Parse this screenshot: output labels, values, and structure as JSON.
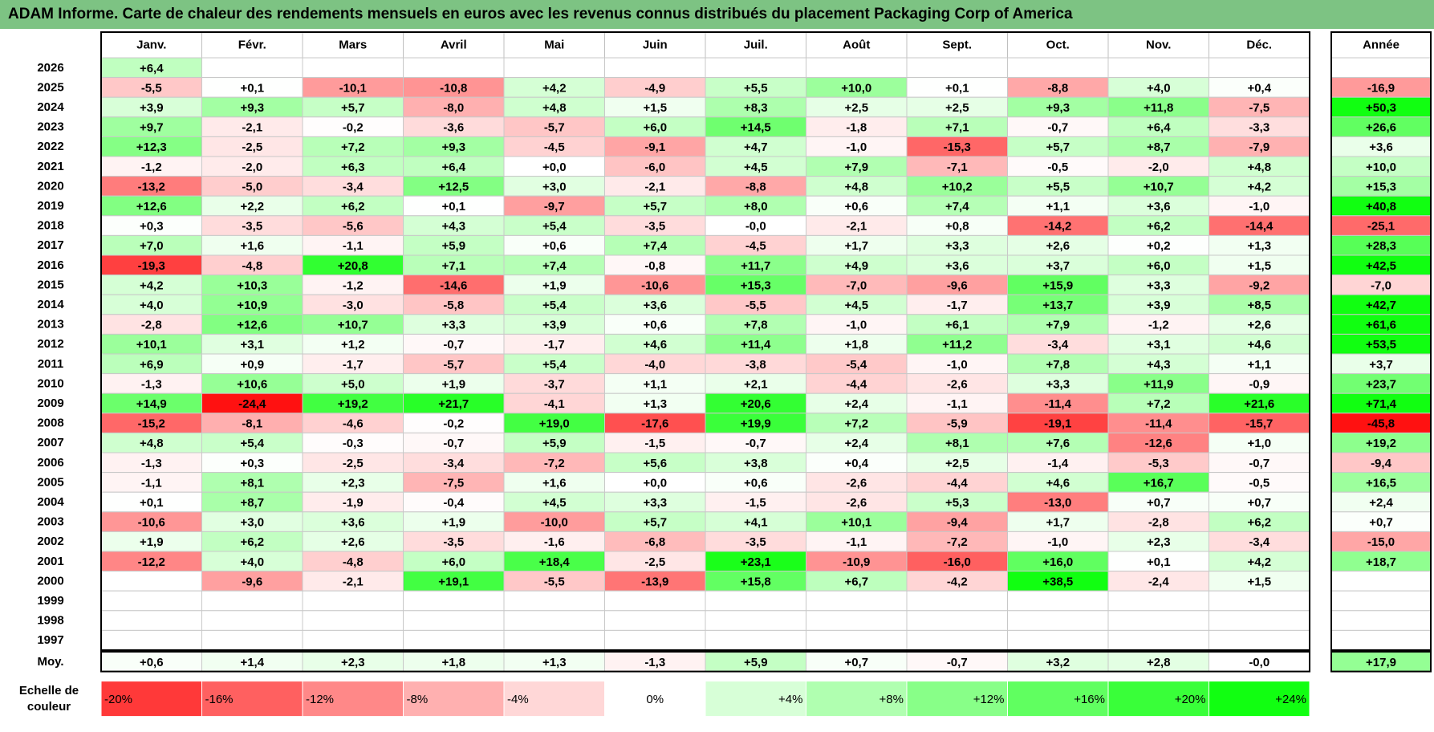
{
  "title": "ADAM Informe. Carte de chaleur des rendements mensuels en euros avec les revenus connus distribués du placement Packaging Corp of America",
  "chart_data": {
    "type": "heatmap",
    "months": [
      "Janv.",
      "Févr.",
      "Mars",
      "Avril",
      "Mai",
      "Juin",
      "Juil.",
      "Août",
      "Sept.",
      "Oct.",
      "Nov.",
      "Déc."
    ],
    "year_column_label": "Année",
    "rows": [
      {
        "year": "2026",
        "values": [
          "+6,4",
          null,
          null,
          null,
          null,
          null,
          null,
          null,
          null,
          null,
          null,
          null
        ],
        "annual": null
      },
      {
        "year": "2025",
        "values": [
          "-5,5",
          "+0,1",
          "-10,1",
          "-10,8",
          "+4,2",
          "-4,9",
          "+5,5",
          "+10,0",
          "+0,1",
          "-8,8",
          "+4,0",
          "+0,4"
        ],
        "annual": "-16,9"
      },
      {
        "year": "2024",
        "values": [
          "+3,9",
          "+9,3",
          "+5,7",
          "-8,0",
          "+4,8",
          "+1,5",
          "+8,3",
          "+2,5",
          "+2,5",
          "+9,3",
          "+11,8",
          "-7,5"
        ],
        "annual": "+50,3"
      },
      {
        "year": "2023",
        "values": [
          "+9,7",
          "-2,1",
          "-0,2",
          "-3,6",
          "-5,7",
          "+6,0",
          "+14,5",
          "-1,8",
          "+7,1",
          "-0,7",
          "+6,4",
          "-3,3"
        ],
        "annual": "+26,6"
      },
      {
        "year": "2022",
        "values": [
          "+12,3",
          "-2,5",
          "+7,2",
          "+9,3",
          "-4,5",
          "-9,1",
          "+4,7",
          "-1,0",
          "-15,3",
          "+5,7",
          "+8,7",
          "-7,9"
        ],
        "annual": "+3,6"
      },
      {
        "year": "2021",
        "values": [
          "-1,2",
          "-2,0",
          "+6,3",
          "+6,4",
          "+0,0",
          "-6,0",
          "+4,5",
          "+7,9",
          "-7,1",
          "-0,5",
          "-2,0",
          "+4,8"
        ],
        "annual": "+10,0"
      },
      {
        "year": "2020",
        "values": [
          "-13,2",
          "-5,0",
          "-3,4",
          "+12,5",
          "+3,0",
          "-2,1",
          "-8,8",
          "+4,8",
          "+10,2",
          "+5,5",
          "+10,7",
          "+4,2"
        ],
        "annual": "+15,3"
      },
      {
        "year": "2019",
        "values": [
          "+12,6",
          "+2,2",
          "+6,2",
          "+0,1",
          "-9,7",
          "+5,7",
          "+8,0",
          "+0,6",
          "+7,4",
          "+1,1",
          "+3,6",
          "-1,0"
        ],
        "annual": "+40,8"
      },
      {
        "year": "2018",
        "values": [
          "+0,3",
          "-3,5",
          "-5,6",
          "+4,3",
          "+5,4",
          "-3,5",
          "-0,0",
          "-2,1",
          "+0,8",
          "-14,2",
          "+6,2",
          "-14,4"
        ],
        "annual": "-25,1"
      },
      {
        "year": "2017",
        "values": [
          "+7,0",
          "+1,6",
          "-1,1",
          "+5,9",
          "+0,6",
          "+7,4",
          "-4,5",
          "+1,7",
          "+3,3",
          "+2,6",
          "+0,2",
          "+1,3"
        ],
        "annual": "+28,3"
      },
      {
        "year": "2016",
        "values": [
          "-19,3",
          "-4,8",
          "+20,8",
          "+7,1",
          "+7,4",
          "-0,8",
          "+11,7",
          "+4,9",
          "+3,6",
          "+3,7",
          "+6,0",
          "+1,5"
        ],
        "annual": "+42,5"
      },
      {
        "year": "2015",
        "values": [
          "+4,2",
          "+10,3",
          "-1,2",
          "-14,6",
          "+1,9",
          "-10,6",
          "+15,3",
          "-7,0",
          "-9,6",
          "+15,9",
          "+3,3",
          "-9,2"
        ],
        "annual": "-7,0"
      },
      {
        "year": "2014",
        "values": [
          "+4,0",
          "+10,9",
          "-3,0",
          "-5,8",
          "+5,4",
          "+3,6",
          "-5,5",
          "+4,5",
          "-1,7",
          "+13,7",
          "+3,9",
          "+8,5"
        ],
        "annual": "+42,7"
      },
      {
        "year": "2013",
        "values": [
          "-2,8",
          "+12,6",
          "+10,7",
          "+3,3",
          "+3,9",
          "+0,6",
          "+7,8",
          "-1,0",
          "+6,1",
          "+7,9",
          "-1,2",
          "+2,6"
        ],
        "annual": "+61,6"
      },
      {
        "year": "2012",
        "values": [
          "+10,1",
          "+3,1",
          "+1,2",
          "-0,7",
          "-1,7",
          "+4,6",
          "+11,4",
          "+1,8",
          "+11,2",
          "-3,4",
          "+3,1",
          "+4,6"
        ],
        "annual": "+53,5"
      },
      {
        "year": "2011",
        "values": [
          "+6,9",
          "+0,9",
          "-1,7",
          "-5,7",
          "+5,4",
          "-4,0",
          "-3,8",
          "-5,4",
          "-1,0",
          "+7,8",
          "+4,3",
          "+1,1"
        ],
        "annual": "+3,7"
      },
      {
        "year": "2010",
        "values": [
          "-1,3",
          "+10,6",
          "+5,0",
          "+1,9",
          "-3,7",
          "+1,1",
          "+2,1",
          "-4,4",
          "-2,6",
          "+3,3",
          "+11,9",
          "-0,9"
        ],
        "annual": "+23,7"
      },
      {
        "year": "2009",
        "values": [
          "+14,9",
          "-24,4",
          "+19,2",
          "+21,7",
          "-4,1",
          "+1,3",
          "+20,6",
          "+2,4",
          "-1,1",
          "-11,4",
          "+7,2",
          "+21,6"
        ],
        "annual": "+71,4"
      },
      {
        "year": "2008",
        "values": [
          "-15,2",
          "-8,1",
          "-4,6",
          "-0,2",
          "+19,0",
          "-17,6",
          "+19,9",
          "+7,2",
          "-5,9",
          "-19,1",
          "-11,4",
          "-15,7"
        ],
        "annual": "-45,8"
      },
      {
        "year": "2007",
        "values": [
          "+4,8",
          "+5,4",
          "-0,3",
          "-0,7",
          "+5,9",
          "-1,5",
          "-0,7",
          "+2,4",
          "+8,1",
          "+7,6",
          "-12,6",
          "+1,0"
        ],
        "annual": "+19,2"
      },
      {
        "year": "2006",
        "values": [
          "-1,3",
          "+0,3",
          "-2,5",
          "-3,4",
          "-7,2",
          "+5,6",
          "+3,8",
          "+0,4",
          "+2,5",
          "-1,4",
          "-5,3",
          "-0,7"
        ],
        "annual": "-9,4"
      },
      {
        "year": "2005",
        "values": [
          "-1,1",
          "+8,1",
          "+2,3",
          "-7,5",
          "+1,6",
          "+0,0",
          "+0,6",
          "-2,6",
          "-4,4",
          "+4,6",
          "+16,7",
          "-0,5"
        ],
        "annual": "+16,5"
      },
      {
        "year": "2004",
        "values": [
          "+0,1",
          "+8,7",
          "-1,9",
          "-0,4",
          "+4,5",
          "+3,3",
          "-1,5",
          "-2,6",
          "+5,3",
          "-13,0",
          "+0,7",
          "+0,7"
        ],
        "annual": "+2,4"
      },
      {
        "year": "2003",
        "values": [
          "-10,6",
          "+3,0",
          "+3,6",
          "+1,9",
          "-10,0",
          "+5,7",
          "+4,1",
          "+10,1",
          "-9,4",
          "+1,7",
          "-2,8",
          "+6,2"
        ],
        "annual": "+0,7"
      },
      {
        "year": "2002",
        "values": [
          "+1,9",
          "+6,2",
          "+2,6",
          "-3,5",
          "-1,6",
          "-6,8",
          "-3,5",
          "-1,1",
          "-7,2",
          "-1,0",
          "+2,3",
          "-3,4"
        ],
        "annual": "-15,0"
      },
      {
        "year": "2001",
        "values": [
          "-12,2",
          "+4,0",
          "-4,8",
          "+6,0",
          "+18,4",
          "-2,5",
          "+23,1",
          "-10,9",
          "-16,0",
          "+16,0",
          "+0,1",
          "+4,2"
        ],
        "annual": "+18,7"
      },
      {
        "year": "2000",
        "values": [
          null,
          "-9,6",
          "-2,1",
          "+19,1",
          "-5,5",
          "-13,9",
          "+15,8",
          "+6,7",
          "-4,2",
          "+38,5",
          "-2,4",
          "+1,5"
        ],
        "annual": null
      },
      {
        "year": "1999",
        "values": [
          null,
          null,
          null,
          null,
          null,
          null,
          null,
          null,
          null,
          null,
          null,
          null
        ],
        "annual": null
      },
      {
        "year": "1998",
        "values": [
          null,
          null,
          null,
          null,
          null,
          null,
          null,
          null,
          null,
          null,
          null,
          null
        ],
        "annual": null
      },
      {
        "year": "1997",
        "values": [
          null,
          null,
          null,
          null,
          null,
          null,
          null,
          null,
          null,
          null,
          null,
          null
        ],
        "annual": null
      }
    ],
    "average": {
      "label": "Moy.",
      "values": [
        "+0,6",
        "+1,4",
        "+2,3",
        "+1,8",
        "+1,3",
        "-1,3",
        "+5,9",
        "+0,7",
        "-0,7",
        "+3,2",
        "+2,8",
        "-0,0"
      ],
      "annual": "+17,9"
    },
    "scale": {
      "label_line1": "Echelle de",
      "label_line2": "couleur",
      "steps": [
        "-20%",
        "-16%",
        "-12%",
        "-8%",
        "-4%",
        "0%",
        "+4%",
        "+8%",
        "+12%",
        "+16%",
        "+20%",
        "+24%"
      ],
      "step_values": [
        -20,
        -16,
        -12,
        -8,
        -4,
        0,
        4,
        8,
        12,
        16,
        20,
        24
      ]
    },
    "colors": {
      "max_red": "#ff1111",
      "max_green": "#11ff11",
      "neutral": "#ffffff",
      "title_bar": "#7dc383"
    }
  }
}
